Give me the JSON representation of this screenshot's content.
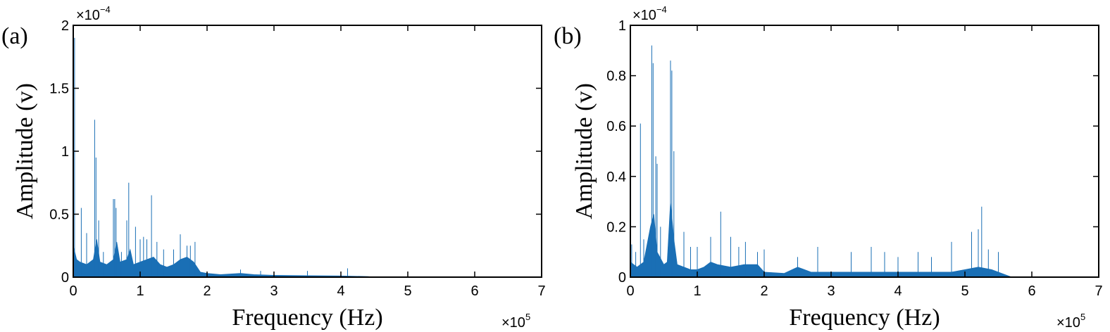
{
  "colors": {
    "series": "#1a6fb5",
    "frame": "#000000",
    "background": "#ffffff"
  },
  "chart_data": [
    {
      "type": "area",
      "panel_label": "(a)",
      "xlabel": "Frequency (Hz)",
      "ylabel": "Amplitude (v)",
      "x_exponent_label": "×10",
      "x_exponent": "5",
      "y_exponent_label": "×10",
      "y_exponent": "−4",
      "xlim": [
        0,
        7
      ],
      "ylim": [
        0,
        2
      ],
      "xticks": [
        "0",
        "1",
        "2",
        "3",
        "4",
        "5",
        "6",
        "7"
      ],
      "yticks": [
        "0",
        "0.5",
        "1",
        "1.5",
        "2"
      ],
      "grid": false,
      "series": [
        {
          "envelope": [
            [
              0,
              0.25
            ],
            [
              0.05,
              0.14
            ],
            [
              0.1,
              0.12
            ],
            [
              0.2,
              0.1
            ],
            [
              0.3,
              0.14
            ],
            [
              0.35,
              0.3
            ],
            [
              0.4,
              0.12
            ],
            [
              0.5,
              0.1
            ],
            [
              0.6,
              0.14
            ],
            [
              0.65,
              0.28
            ],
            [
              0.7,
              0.12
            ],
            [
              0.8,
              0.14
            ],
            [
              0.85,
              0.22
            ],
            [
              0.9,
              0.1
            ],
            [
              1.0,
              0.12
            ],
            [
              1.1,
              0.14
            ],
            [
              1.2,
              0.16
            ],
            [
              1.3,
              0.1
            ],
            [
              1.4,
              0.08
            ],
            [
              1.5,
              0.1
            ],
            [
              1.6,
              0.14
            ],
            [
              1.7,
              0.16
            ],
            [
              1.8,
              0.12
            ],
            [
              1.9,
              0.04
            ],
            [
              2.0,
              0.03
            ],
            [
              2.2,
              0.02
            ],
            [
              2.5,
              0.03
            ],
            [
              2.7,
              0.02
            ],
            [
              3.0,
              0.015
            ],
            [
              3.5,
              0.012
            ],
            [
              4.0,
              0.01
            ],
            [
              4.4,
              0.005
            ],
            [
              4.5,
              0.0
            ],
            [
              7.0,
              0.0
            ]
          ],
          "spikes": [
            [
              0.02,
              1.9
            ],
            [
              0.12,
              0.55
            ],
            [
              0.2,
              0.35
            ],
            [
              0.32,
              1.25
            ],
            [
              0.34,
              0.95
            ],
            [
              0.38,
              0.45
            ],
            [
              0.45,
              0.2
            ],
            [
              0.6,
              0.62
            ],
            [
              0.62,
              0.62
            ],
            [
              0.64,
              0.55
            ],
            [
              0.72,
              0.2
            ],
            [
              0.8,
              0.45
            ],
            [
              0.83,
              0.75
            ],
            [
              0.93,
              0.4
            ],
            [
              1.0,
              0.3
            ],
            [
              1.05,
              0.32
            ],
            [
              1.1,
              0.3
            ],
            [
              1.17,
              0.65
            ],
            [
              1.25,
              0.28
            ],
            [
              1.35,
              0.22
            ],
            [
              1.5,
              0.22
            ],
            [
              1.6,
              0.34
            ],
            [
              1.7,
              0.25
            ],
            [
              1.75,
              0.25
            ],
            [
              1.82,
              0.28
            ],
            [
              2.5,
              0.06
            ],
            [
              2.8,
              0.05
            ],
            [
              3.5,
              0.05
            ],
            [
              4.1,
              0.07
            ]
          ]
        }
      ]
    },
    {
      "type": "area",
      "panel_label": "(b)",
      "xlabel": "Frequency (Hz)",
      "ylabel": "Amplitude (v)",
      "x_exponent_label": "×10",
      "x_exponent": "5",
      "y_exponent_label": "×10",
      "y_exponent": "−4",
      "xlim": [
        0,
        7
      ],
      "ylim": [
        0,
        1
      ],
      "xticks": [
        "0",
        "1",
        "2",
        "3",
        "4",
        "5",
        "6",
        "7"
      ],
      "yticks": [
        "0",
        "0.2",
        "0.4",
        "0.6",
        "0.8",
        "1"
      ],
      "grid": false,
      "series": [
        {
          "envelope": [
            [
              0,
              0.06
            ],
            [
              0.05,
              0.05
            ],
            [
              0.1,
              0.04
            ],
            [
              0.2,
              0.06
            ],
            [
              0.3,
              0.2
            ],
            [
              0.35,
              0.25
            ],
            [
              0.4,
              0.1
            ],
            [
              0.5,
              0.05
            ],
            [
              0.55,
              0.06
            ],
            [
              0.6,
              0.3
            ],
            [
              0.65,
              0.15
            ],
            [
              0.7,
              0.05
            ],
            [
              0.8,
              0.04
            ],
            [
              0.9,
              0.03
            ],
            [
              1.0,
              0.03
            ],
            [
              1.1,
              0.04
            ],
            [
              1.2,
              0.06
            ],
            [
              1.3,
              0.05
            ],
            [
              1.5,
              0.04
            ],
            [
              1.7,
              0.05
            ],
            [
              1.9,
              0.05
            ],
            [
              2.0,
              0.02
            ],
            [
              2.3,
              0.015
            ],
            [
              2.5,
              0.04
            ],
            [
              2.7,
              0.02
            ],
            [
              3.0,
              0.02
            ],
            [
              3.5,
              0.02
            ],
            [
              4.0,
              0.02
            ],
            [
              4.5,
              0.02
            ],
            [
              4.8,
              0.02
            ],
            [
              5.0,
              0.03
            ],
            [
              5.2,
              0.04
            ],
            [
              5.4,
              0.03
            ],
            [
              5.6,
              0.01
            ],
            [
              5.7,
              0.0
            ],
            [
              7.0,
              0.0
            ]
          ],
          "spikes": [
            [
              0.02,
              0.13
            ],
            [
              0.08,
              0.1
            ],
            [
              0.15,
              0.61
            ],
            [
              0.2,
              0.15
            ],
            [
              0.32,
              0.92
            ],
            [
              0.34,
              0.85
            ],
            [
              0.38,
              0.48
            ],
            [
              0.4,
              0.45
            ],
            [
              0.45,
              0.2
            ],
            [
              0.6,
              0.86
            ],
            [
              0.62,
              0.82
            ],
            [
              0.65,
              0.5
            ],
            [
              0.8,
              0.18
            ],
            [
              0.9,
              0.12
            ],
            [
              1.0,
              0.12
            ],
            [
              1.2,
              0.16
            ],
            [
              1.35,
              0.26
            ],
            [
              1.5,
              0.16
            ],
            [
              1.62,
              0.12
            ],
            [
              1.72,
              0.14
            ],
            [
              1.9,
              0.1
            ],
            [
              2.0,
              0.11
            ],
            [
              2.5,
              0.08
            ],
            [
              2.8,
              0.12
            ],
            [
              3.3,
              0.1
            ],
            [
              3.6,
              0.12
            ],
            [
              3.8,
              0.1
            ],
            [
              4.0,
              0.08
            ],
            [
              4.3,
              0.1
            ],
            [
              4.5,
              0.08
            ],
            [
              4.8,
              0.14
            ],
            [
              5.1,
              0.18
            ],
            [
              5.2,
              0.19
            ],
            [
              5.25,
              0.28
            ],
            [
              5.35,
              0.11
            ],
            [
              5.5,
              0.1
            ]
          ]
        }
      ]
    }
  ]
}
